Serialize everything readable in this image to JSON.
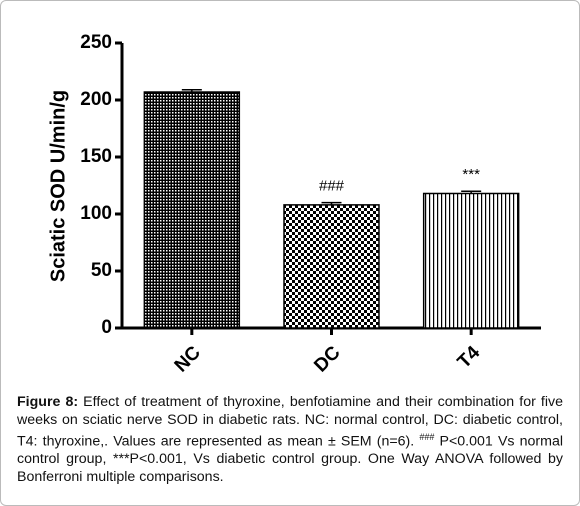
{
  "chart_data": {
    "type": "bar",
    "ylabel": "Sciatic SOD U/min/g",
    "categories": [
      "NC",
      "DC",
      "T4"
    ],
    "values": [
      207,
      108,
      118
    ],
    "errors": [
      2,
      2,
      2
    ],
    "annotations": [
      null,
      "###",
      "***"
    ],
    "color": "#000000",
    "ylim": [
      0,
      250
    ],
    "yticks": [
      0,
      50,
      100,
      150,
      200,
      250
    ]
  },
  "caption": {
    "label": "Figure 8:",
    "text_1": " Effect of treatment of thyroxine, benfotiamine and their combination for five weeks on sciatic nerve SOD in diabetic rats. NC: normal control, DC: diabetic control, T4: thyroxine,. Values are represented as mean ± SEM (n=6). ",
    "superscript": "###",
    "text_2": " P<0.001 Vs normal control group, ***P<0.001, Vs diabetic control group. One Way ANOVA followed by Bonferroni multiple comparisons."
  }
}
